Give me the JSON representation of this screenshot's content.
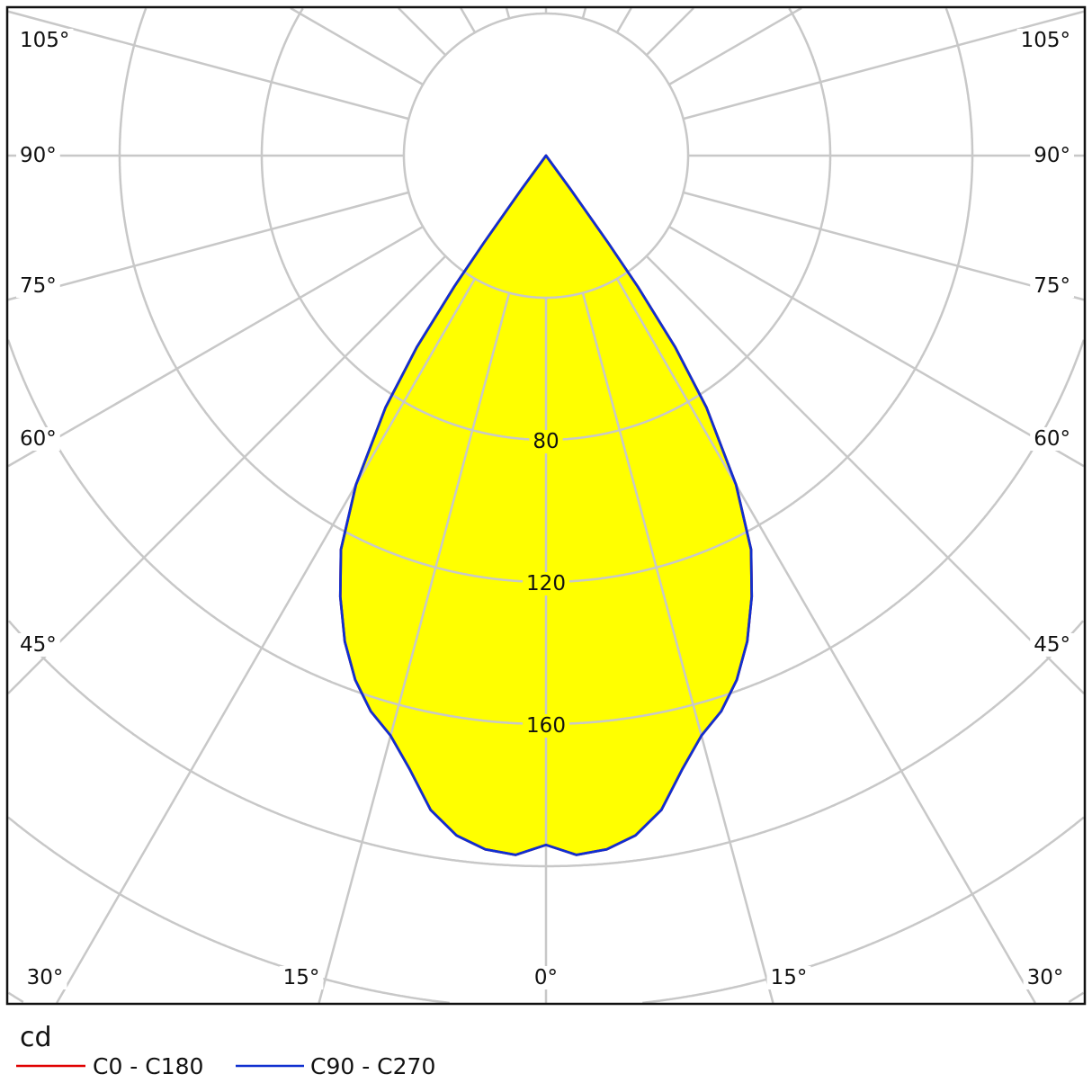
{
  "chart_data": {
    "type": "polar",
    "unit_label": "cd",
    "radial_ticks": [
      40,
      80,
      120,
      160,
      200,
      240,
      280
    ],
    "radial_tick_labels": [
      "80",
      "120",
      "160"
    ],
    "angle_step_deg": 15,
    "angle_labels": {
      "left": [
        "105°",
        "90°",
        "75°",
        "60°",
        "45°"
      ],
      "bottom": [
        "30°",
        "15°",
        "0°",
        "15°",
        "30°"
      ],
      "right": [
        "105°",
        "90°",
        "75°",
        "60°",
        "45°"
      ]
    },
    "grid": true,
    "angles_deg": [
      0,
      2.5,
      5,
      7.5,
      10,
      12.5,
      15,
      17.5,
      20,
      22.5,
      25,
      27.5,
      30,
      32.5,
      34,
      35,
      35.5,
      36,
      37,
      40,
      60,
      90,
      120,
      150,
      180
    ],
    "series": [
      {
        "name": "C0 - C180",
        "color": "#e00000",
        "values": [
          194,
          197,
          196,
          193,
          187,
          177,
          169,
          164,
          157,
          148,
          137,
          125,
          107,
          84,
          65,
          45,
          30,
          12,
          0,
          0,
          0,
          0,
          0,
          0,
          0
        ]
      },
      {
        "name": "C90 - C270",
        "color": "#1030d0",
        "values": [
          194,
          197,
          196,
          193,
          187,
          177,
          169,
          164,
          157,
          148,
          137,
          125,
          107,
          84,
          65,
          45,
          30,
          12,
          0,
          0,
          0,
          0,
          0,
          0,
          0
        ]
      }
    ],
    "fill_color": "#ffff00",
    "legend_placement": "bottom-left"
  }
}
